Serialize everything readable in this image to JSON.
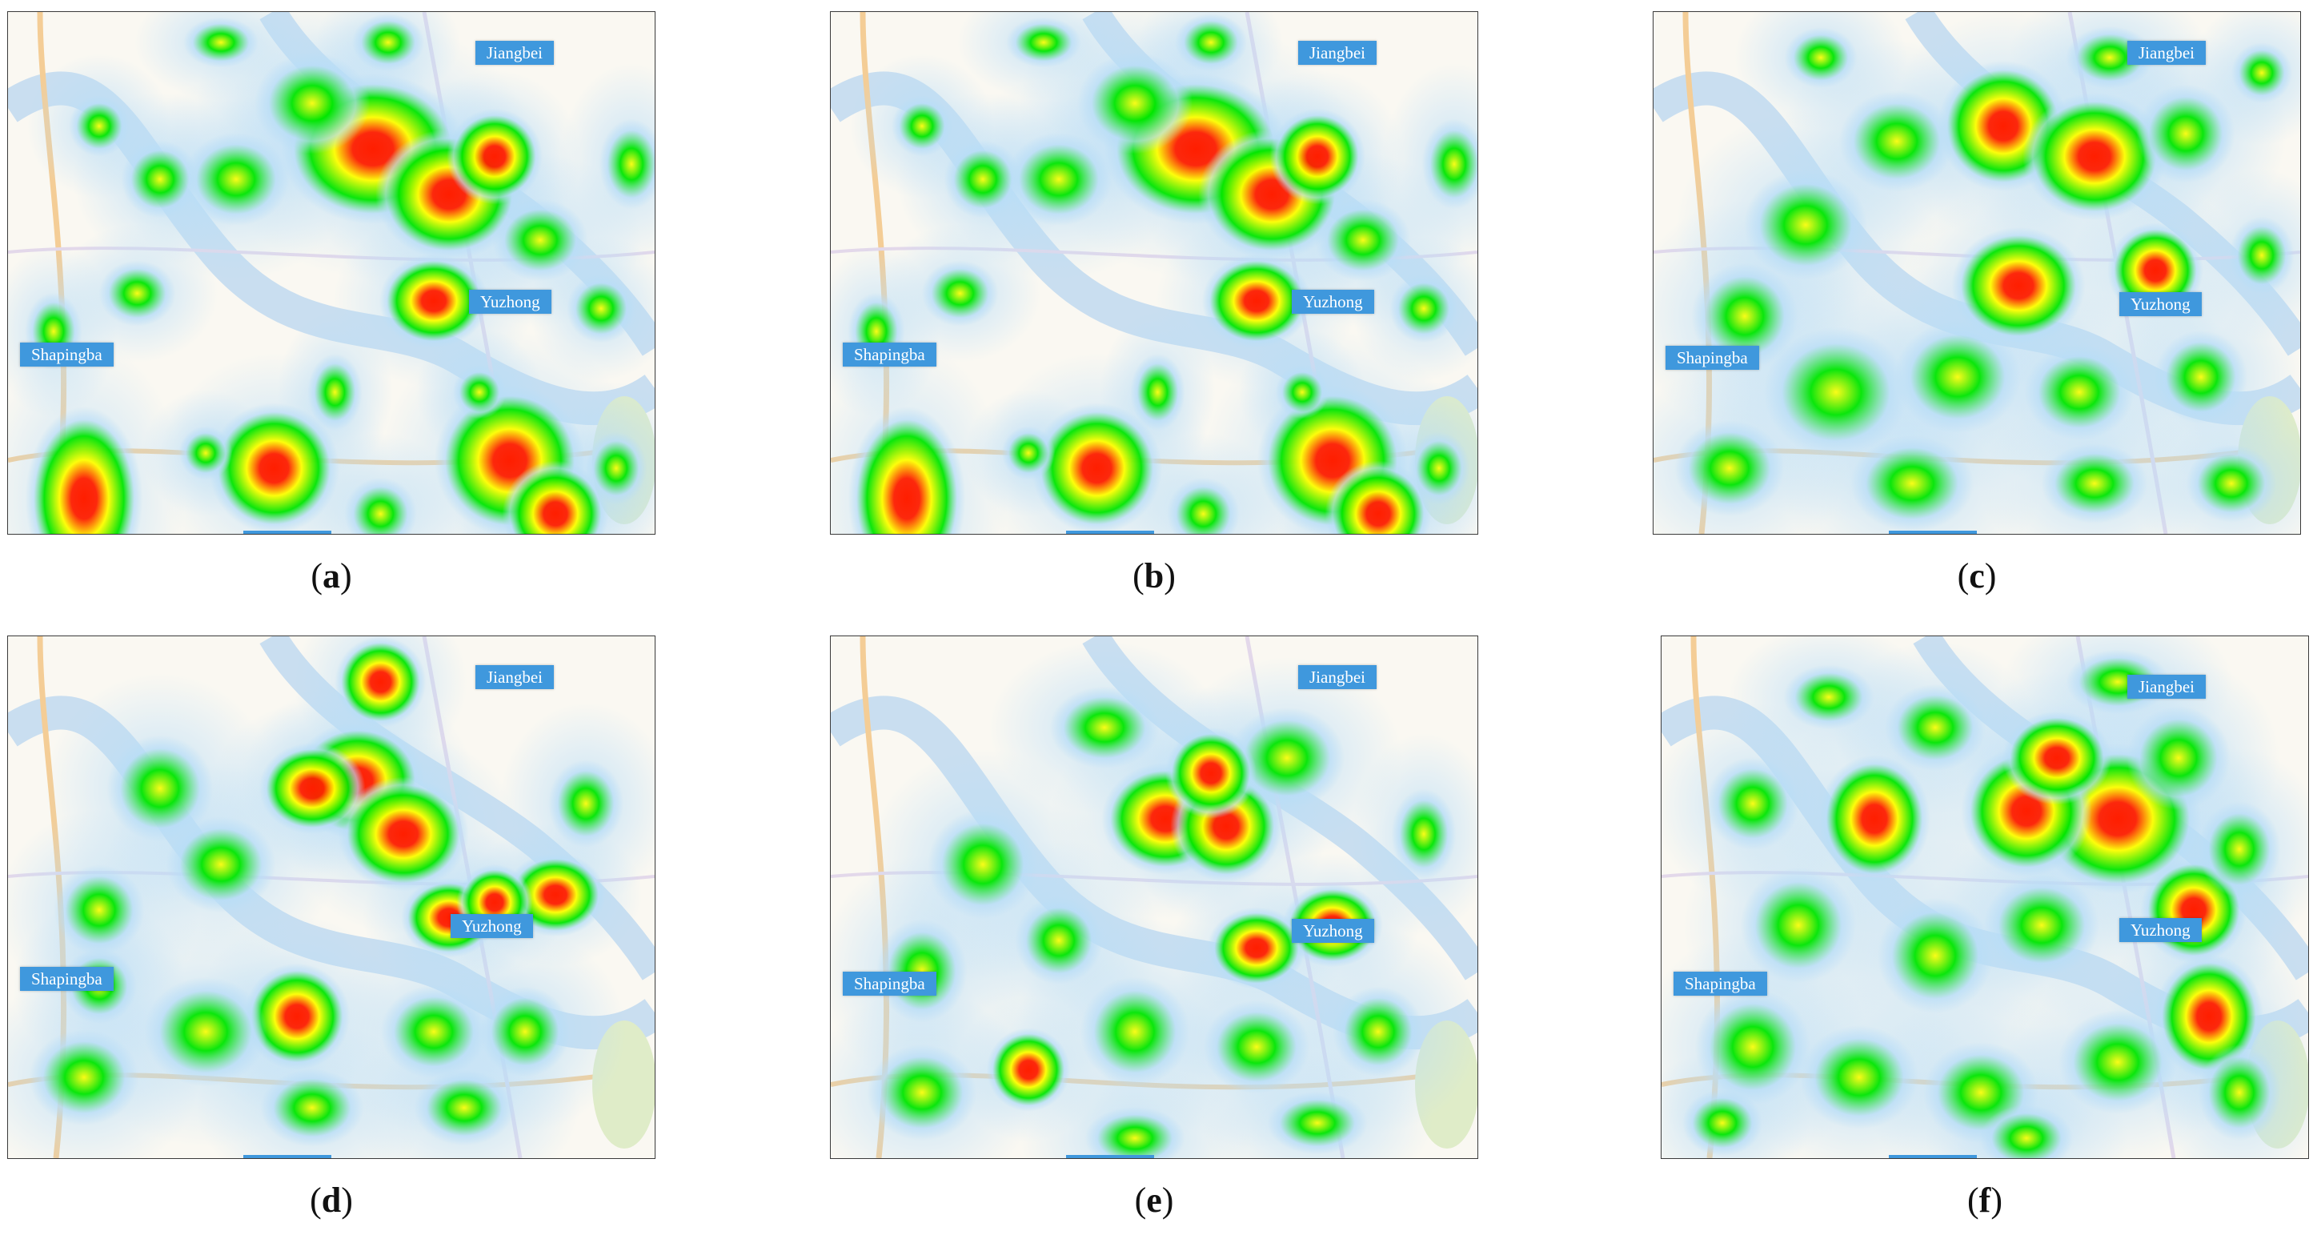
{
  "colors": {
    "map_background": "#faf8f2",
    "river": "#c9def0",
    "road_major": "#f4cd96",
    "road_minor": "#e3d8ea",
    "park": "#dfecc8",
    "label_background": "#3f98dd",
    "label_text": "#ffffff",
    "heat_low": "#b8ddf7",
    "heat_mid": "#00e600",
    "heat_high": "#ffff00",
    "heat_peak": "#ff1e00"
  },
  "panels": [
    {
      "letter": "a",
      "district_labels": {
        "jiangbei": "Jiangbei",
        "yuzhong": "Yuzhong",
        "shapingba": "Shapingba"
      }
    },
    {
      "letter": "b",
      "district_labels": {
        "jiangbei": "Jiangbei",
        "yuzhong": "Yuzhong",
        "shapingba": "Shapingba"
      }
    },
    {
      "letter": "c",
      "district_labels": {
        "jiangbei": "Jiangbei",
        "yuzhong": "Yuzhong",
        "shapingba": "Shapingba"
      }
    },
    {
      "letter": "d",
      "district_labels": {
        "jiangbei": "Jiangbei",
        "yuzhong": "Yuzhong",
        "shapingba": "Shapingba"
      }
    },
    {
      "letter": "e",
      "district_labels": {
        "jiangbei": "Jiangbei",
        "yuzhong": "Yuzhong",
        "shapingba": "Shapingba"
      }
    },
    {
      "letter": "f",
      "district_labels": {
        "jiangbei": "Jiangbei",
        "yuzhong": "Yuzhong",
        "shapingba": "Shapingba"
      }
    }
  ],
  "caption_format": {
    "open": "(",
    "close": ")"
  }
}
